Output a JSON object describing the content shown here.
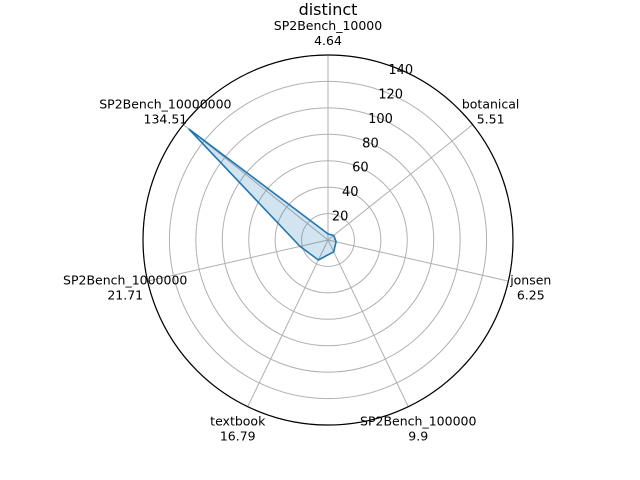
{
  "chart_data": {
    "type": "radar",
    "title": "distinct",
    "categories": [
      "SP2Bench_10000",
      "botanical",
      "jonsen",
      "SP2Bench_100000",
      "textbook",
      "SP2Bench_1000000",
      "SP2Bench_10000000"
    ],
    "values": [
      4.64,
      5.51,
      6.25,
      9.9,
      16.79,
      21.71,
      134.51
    ],
    "value_labels": [
      "4.64",
      "5.51",
      "6.25",
      "9.9",
      "16.79",
      "21.71",
      "134.51"
    ],
    "rlim": [
      0,
      140
    ],
    "rticks": [
      20,
      40,
      60,
      80,
      100,
      120,
      140
    ],
    "rtick_labels": [
      "20",
      "40",
      "60",
      "80",
      "100",
      "120",
      "140"
    ],
    "grid": true,
    "colors": {
      "series": "#1f77b4",
      "grid": "#b0b0b0"
    }
  }
}
